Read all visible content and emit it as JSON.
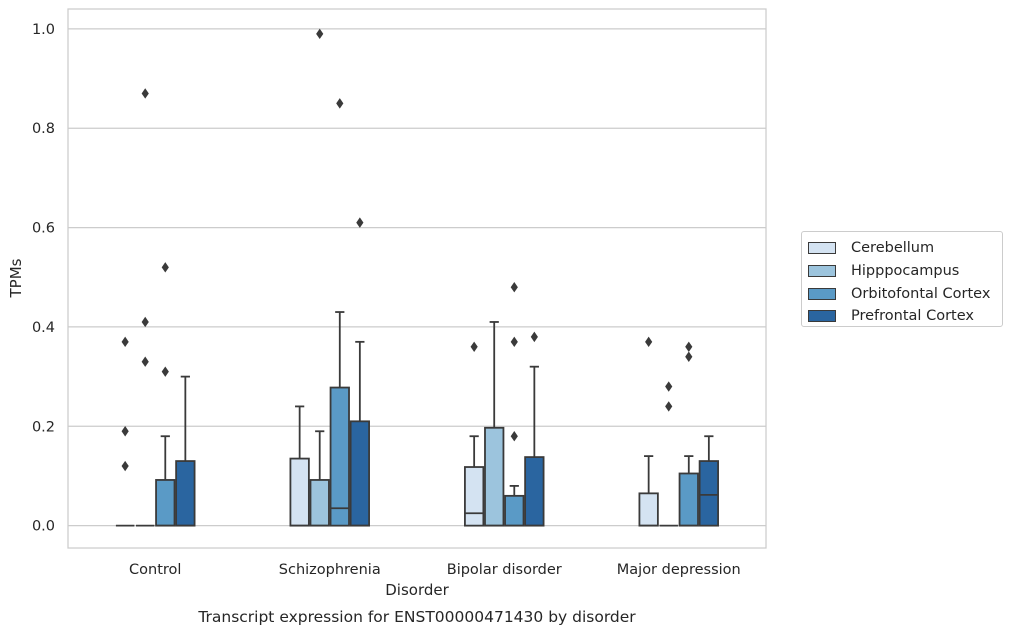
{
  "chart_data": {
    "type": "box",
    "title": "Transcript expression for ENST00000471430 by disorder",
    "xlabel": "Disorder",
    "ylabel": "TPMs",
    "ylim": [
      -0.045,
      1.04
    ],
    "yticks": [
      0.0,
      0.2,
      0.4,
      0.6,
      0.8,
      1.0
    ],
    "ytick_labels": [
      "0.0",
      "0.2",
      "0.4",
      "0.6",
      "0.8",
      "1.0"
    ],
    "grid": "horizontal",
    "legend_position": "right",
    "categories": [
      "Control",
      "Schizophrenia",
      "Bipolar disorder",
      "Major depression"
    ],
    "series": [
      {
        "name": "Cerebellum",
        "color": "#d4e3f2",
        "boxes": [
          {
            "whislo": 0.0,
            "q1": 0.0,
            "med": 0.0,
            "q3": 0.0,
            "whishi": 0.0,
            "fliers": [
              0.12,
              0.19,
              0.37
            ]
          },
          {
            "whislo": 0.0,
            "q1": 0.0,
            "med": 0.0,
            "q3": 0.135,
            "whishi": 0.24,
            "fliers": []
          },
          {
            "whislo": 0.0,
            "q1": 0.0,
            "med": 0.025,
            "q3": 0.118,
            "whishi": 0.18,
            "fliers": [
              0.36
            ]
          },
          {
            "whislo": 0.0,
            "q1": 0.0,
            "med": 0.0,
            "q3": 0.065,
            "whishi": 0.14,
            "fliers": [
              0.37
            ]
          }
        ]
      },
      {
        "name": "Hipppocampus",
        "color": "#9cc4dd",
        "boxes": [
          {
            "whislo": 0.0,
            "q1": 0.0,
            "med": 0.0,
            "q3": 0.0,
            "whishi": 0.0,
            "fliers": [
              0.33,
              0.41,
              0.87
            ]
          },
          {
            "whislo": 0.0,
            "q1": 0.0,
            "med": 0.0,
            "q3": 0.092,
            "whishi": 0.19,
            "fliers": [
              0.99
            ]
          },
          {
            "whislo": 0.0,
            "q1": 0.0,
            "med": 0.0,
            "q3": 0.197,
            "whishi": 0.41,
            "fliers": []
          },
          {
            "whislo": 0.0,
            "q1": 0.0,
            "med": 0.0,
            "q3": 0.0,
            "whishi": 0.0,
            "fliers": [
              0.24,
              0.28
            ]
          }
        ]
      },
      {
        "name": "Orbitofontal Cortex",
        "color": "#5a9ac6",
        "boxes": [
          {
            "whislo": 0.0,
            "q1": 0.0,
            "med": 0.0,
            "q3": 0.092,
            "whishi": 0.18,
            "fliers": [
              0.31,
              0.52
            ]
          },
          {
            "whislo": 0.0,
            "q1": 0.0,
            "med": 0.035,
            "q3": 0.278,
            "whishi": 0.43,
            "fliers": [
              0.85
            ]
          },
          {
            "whislo": 0.0,
            "q1": 0.0,
            "med": 0.0,
            "q3": 0.06,
            "whishi": 0.08,
            "fliers": [
              0.18,
              0.37,
              0.48
            ]
          },
          {
            "whislo": 0.0,
            "q1": 0.0,
            "med": 0.0,
            "q3": 0.105,
            "whishi": 0.14,
            "fliers": [
              0.34,
              0.36
            ]
          }
        ]
      },
      {
        "name": "Prefrontal Cortex",
        "color": "#2a65a0",
        "boxes": [
          {
            "whislo": 0.0,
            "q1": 0.0,
            "med": 0.0,
            "q3": 0.13,
            "whishi": 0.3,
            "fliers": []
          },
          {
            "whislo": 0.0,
            "q1": 0.0,
            "med": 0.0,
            "q3": 0.21,
            "whishi": 0.37,
            "fliers": [
              0.61
            ]
          },
          {
            "whislo": 0.0,
            "q1": 0.0,
            "med": 0.0,
            "q3": 0.138,
            "whishi": 0.32,
            "fliers": [
              0.38
            ]
          },
          {
            "whislo": 0.0,
            "q1": 0.0,
            "med": 0.062,
            "q3": 0.13,
            "whishi": 0.18,
            "fliers": []
          }
        ]
      }
    ]
  }
}
